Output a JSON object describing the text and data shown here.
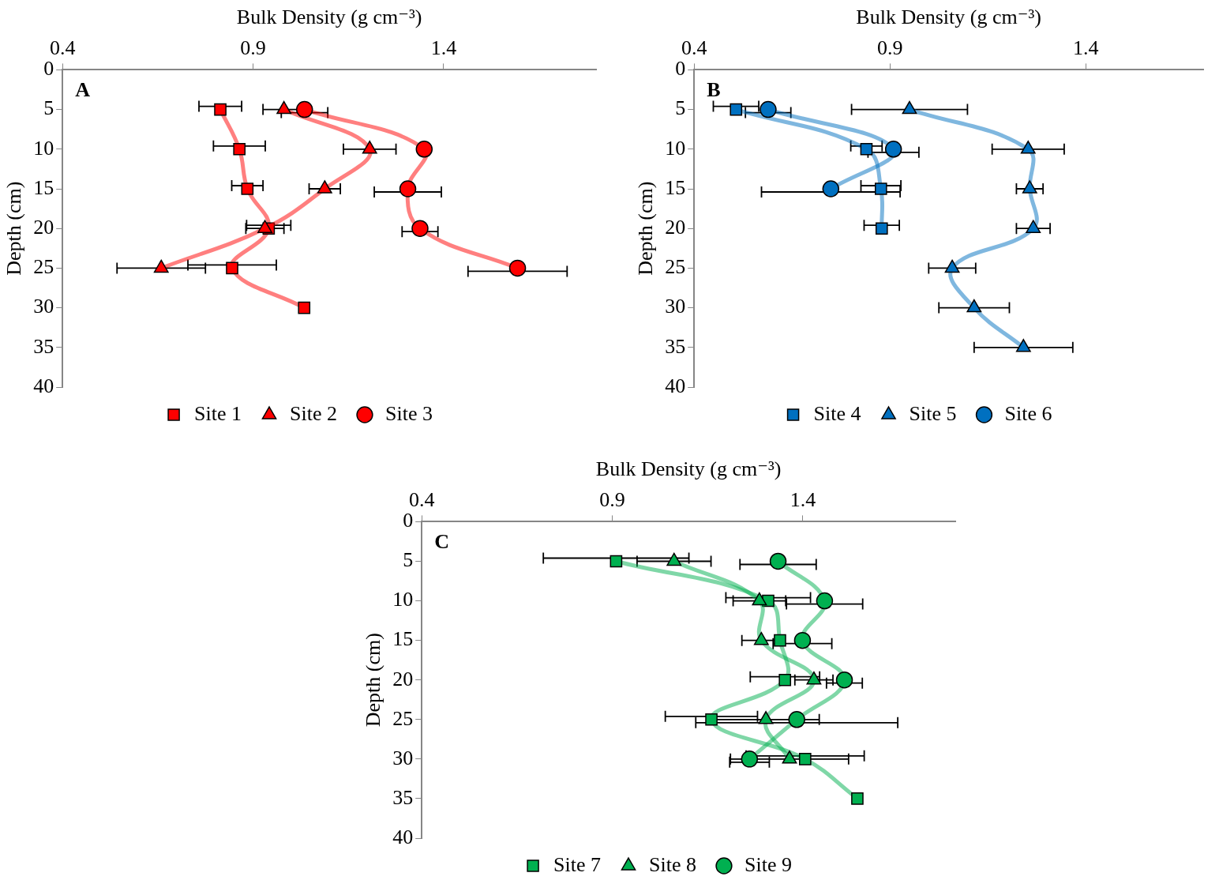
{
  "chart_data": [
    {
      "type": "line",
      "xlabel": "Bulk Density (g cm⁻³)",
      "ylabel": "Depth (cm)",
      "annotations": [
        "A"
      ],
      "xlim": [
        0.4,
        1.8
      ],
      "xticks": [
        0.4,
        0.9,
        1.4
      ],
      "ylim": [
        40,
        0
      ],
      "yticks": [
        0,
        5,
        10,
        15,
        20,
        25,
        30,
        35,
        40
      ],
      "grid": false,
      "legend": "bottom",
      "series": [
        {
          "name": "Site 1",
          "color": "#ff0000",
          "marker": "square",
          "x": [
            0.814,
            0.864,
            0.885,
            0.941,
            0.845,
            1.034
          ],
          "values": [
            5,
            10,
            15,
            20,
            25,
            30
          ],
          "xerrors": [
            0.056,
            0.068,
            0.041,
            0.058,
            0.116,
            null
          ]
        },
        {
          "name": "Site 2",
          "color": "#ff0000",
          "marker": "triangle",
          "x": [
            0.981,
            1.206,
            1.088,
            0.931,
            0.659
          ],
          "values": [
            5,
            10,
            15,
            20,
            25
          ],
          "xerrors": [
            0.055,
            0.069,
            0.041,
            0.05,
            0.116
          ]
        },
        {
          "name": "Site 3",
          "color": "#ff0000",
          "marker": "circle",
          "x": [
            1.035,
            1.349,
            1.306,
            1.338,
            1.594
          ],
          "values": [
            5,
            10,
            15,
            20,
            25
          ],
          "xerrors": [
            0.061,
            null,
            0.088,
            0.047,
            0.13
          ]
        }
      ]
    },
    {
      "type": "line",
      "xlabel": "Bulk Density (g cm⁻³)",
      "ylabel": "Depth (cm)",
      "annotations": [
        "B"
      ],
      "xlim": [
        0.4,
        1.7
      ],
      "xticks": [
        0.4,
        0.9,
        1.4
      ],
      "ylim": [
        40,
        0
      ],
      "yticks": [
        0,
        5,
        10,
        15,
        20,
        25,
        30,
        35,
        40
      ],
      "grid": false,
      "legend": "bottom",
      "series": [
        {
          "name": "Site 4",
          "color": "#0070c0",
          "marker": "square",
          "x": [
            0.507,
            0.84,
            0.877,
            0.879
          ],
          "values": [
            5,
            10,
            15,
            20
          ],
          "xerrors": [
            0.058,
            0.04,
            0.051,
            0.045
          ]
        },
        {
          "name": "Site 5",
          "color": "#0070c0",
          "marker": "triangle",
          "x": [
            0.95,
            1.253,
            1.257,
            1.266,
            1.059,
            1.115,
            1.241
          ],
          "values": [
            5,
            10,
            15,
            20,
            25,
            30,
            35
          ],
          "xerrors": [
            0.148,
            0.092,
            0.034,
            0.043,
            0.06,
            0.09,
            0.126
          ]
        },
        {
          "name": "Site 6",
          "color": "#0070c0",
          "marker": "circle",
          "x": [
            0.589,
            0.909,
            0.749
          ],
          "values": [
            5,
            10,
            15
          ],
          "xerrors": [
            0.058,
            0.065,
            0.177
          ]
        }
      ]
    },
    {
      "type": "line",
      "xlabel": "Bulk Density (g cm⁻³)",
      "ylabel": "Depth (cm)",
      "annotations": [
        "C"
      ],
      "xlim": [
        0.4,
        1.8
      ],
      "xticks": [
        0.4,
        0.9,
        1.4
      ],
      "ylim": [
        40,
        0
      ],
      "yticks": [
        0,
        5,
        10,
        15,
        20,
        25,
        30,
        35,
        40
      ],
      "grid": false,
      "legend": "bottom",
      "series": [
        {
          "name": "Site 7",
          "color": "#00b050",
          "marker": "square",
          "x": [
            0.91,
            1.309,
            1.34,
            1.353,
            1.16,
            1.406,
            1.543
          ],
          "values": [
            5,
            10,
            15,
            20,
            25,
            30,
            35
          ],
          "xerrors": [
            0.191,
            0.111,
            null,
            0.091,
            0.121,
            0.155,
            null
          ]
        },
        {
          "name": "Site 8",
          "color": "#00b050",
          "marker": "triangle",
          "x": [
            1.062,
            1.286,
            1.291,
            1.429,
            1.303,
            1.365
          ],
          "values": [
            5,
            10,
            15,
            20,
            25,
            30
          ],
          "xerrors": [
            0.097,
            0.069,
            0.051,
            0.05,
            0.14,
            0.155
          ]
        },
        {
          "name": "Site 9",
          "color": "#00b050",
          "marker": "circle",
          "x": [
            1.335,
            1.457,
            1.399,
            1.509,
            1.384,
            1.26
          ],
          "values": [
            5,
            10,
            15,
            20,
            25,
            30
          ],
          "xerrors": [
            0.1,
            0.1,
            0.077,
            0.047,
            0.265,
            0.052
          ]
        }
      ]
    }
  ]
}
